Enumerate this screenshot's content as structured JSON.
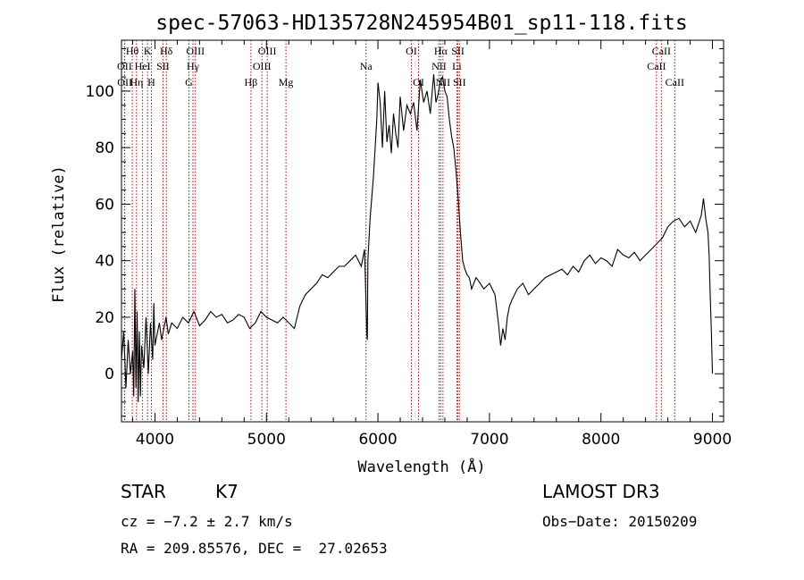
{
  "chart_data": {
    "type": "line",
    "title": "spec-57063-HD135728N245954B01_sp11-118.fits",
    "xlabel": "Wavelength (Å)",
    "ylabel": "Flux (relative)",
    "xlim": [
      3700,
      9100
    ],
    "ylim": [
      -17,
      118
    ],
    "xticks": [
      4000,
      5000,
      6000,
      7000,
      8000,
      9000
    ],
    "yticks": [
      0,
      20,
      40,
      60,
      80,
      100
    ],
    "grid": false,
    "series": [
      {
        "color": "#000000",
        "x": [
          3700,
          3720,
          3740,
          3760,
          3780,
          3800,
          3810,
          3820,
          3830,
          3840,
          3850,
          3860,
          3870,
          3880,
          3900,
          3920,
          3940,
          3960,
          3980,
          3990,
          4000,
          4020,
          4040,
          4060,
          4080,
          4100,
          4120,
          4150,
          4200,
          4250,
          4300,
          4350,
          4400,
          4450,
          4500,
          4550,
          4600,
          4650,
          4700,
          4750,
          4800,
          4850,
          4900,
          4950,
          5000,
          5050,
          5100,
          5150,
          5200,
          5250,
          5300,
          5350,
          5400,
          5450,
          5500,
          5550,
          5600,
          5650,
          5700,
          5750,
          5800,
          5850,
          5880,
          5900,
          5905,
          5910,
          5930,
          5960,
          5990,
          6000,
          6020,
          6040,
          6060,
          6080,
          6100,
          6120,
          6140,
          6160,
          6180,
          6200,
          6230,
          6260,
          6290,
          6320,
          6350,
          6380,
          6410,
          6440,
          6470,
          6500,
          6520,
          6540,
          6560,
          6580,
          6600,
          6620,
          6640,
          6660,
          6680,
          6700,
          6720,
          6740,
          6760,
          6780,
          6800,
          6820,
          6840,
          6860,
          6880,
          6900,
          6950,
          7000,
          7050,
          7080,
          7100,
          7120,
          7140,
          7160,
          7180,
          7200,
          7250,
          7300,
          7350,
          7400,
          7450,
          7500,
          7550,
          7600,
          7650,
          7700,
          7750,
          7800,
          7850,
          7900,
          7950,
          8000,
          8050,
          8100,
          8150,
          8200,
          8250,
          8300,
          8350,
          8400,
          8450,
          8500,
          8550,
          8600,
          8650,
          8700,
          8750,
          8800,
          8850,
          8900,
          8920,
          8940,
          8960,
          8970,
          8980,
          8990,
          9000
        ],
        "y": [
          5,
          15,
          -5,
          12,
          0,
          8,
          -8,
          30,
          -5,
          22,
          -10,
          15,
          -8,
          10,
          2,
          20,
          0,
          18,
          5,
          25,
          10,
          14,
          18,
          12,
          16,
          20,
          14,
          18,
          16,
          20,
          18,
          22,
          17,
          19,
          22,
          20,
          21,
          18,
          19,
          21,
          20,
          16,
          18,
          22,
          20,
          19,
          18,
          20,
          18,
          16,
          24,
          28,
          30,
          32,
          35,
          34,
          36,
          38,
          38,
          40,
          42,
          38,
          44,
          14,
          12,
          40,
          55,
          70,
          90,
          103,
          96,
          80,
          100,
          82,
          88,
          78,
          92,
          85,
          80,
          98,
          86,
          95,
          92,
          96,
          86,
          104,
          96,
          100,
          92,
          106,
          96,
          99,
          104,
          105,
          100,
          98,
          90,
          84,
          80,
          72,
          62,
          50,
          40,
          37,
          35,
          34,
          30,
          32,
          34,
          33,
          30,
          32,
          28,
          18,
          10,
          16,
          12,
          20,
          24,
          26,
          30,
          32,
          28,
          30,
          32,
          34,
          35,
          36,
          37,
          35,
          38,
          36,
          40,
          42,
          39,
          41,
          40,
          38,
          44,
          42,
          41,
          43,
          40,
          42,
          44,
          46,
          48,
          52,
          54,
          55,
          52,
          54,
          50,
          56,
          62,
          55,
          50,
          42,
          28,
          15,
          0
        ]
      }
    ],
    "lines": {
      "row1": [
        {
          "label": "Hθ",
          "x": 3797
        },
        {
          "label": "K",
          "x": 3934
        },
        {
          "label": "Hδ",
          "x": 4102
        },
        {
          "label": "OIII",
          "x": 4363
        },
        {
          "label": "OIII",
          "x": 5007
        },
        {
          "label": "OI",
          "x": 6300
        },
        {
          "label": "Hα",
          "x": 6563
        },
        {
          "label": "SII",
          "x": 6717
        },
        {
          "label": "CaII",
          "x": 8542
        }
      ],
      "row2": [
        {
          "label": "OII",
          "x": 3727
        },
        {
          "label": "HeI",
          "x": 3889
        },
        {
          "label": "SII",
          "x": 4072
        },
        {
          "label": "Hγ",
          "x": 4341
        },
        {
          "label": "OIII",
          "x": 4959
        },
        {
          "label": "Na",
          "x": 5893
        },
        {
          "label": "NII",
          "x": 6548
        },
        {
          "label": "Li",
          "x": 6708
        },
        {
          "label": "CaII",
          "x": 8498
        }
      ],
      "row3": [
        {
          "label": "OII",
          "x": 3729
        },
        {
          "label": "Hη",
          "x": 3835
        },
        {
          "label": "H",
          "x": 3968
        },
        {
          "label": "G",
          "x": 4305
        },
        {
          "label": "Hβ",
          "x": 4861
        },
        {
          "label": "Mg",
          "x": 5175
        },
        {
          "label": "OI",
          "x": 6364
        },
        {
          "label": "NII",
          "x": 6583
        },
        {
          "label": "SII",
          "x": 6731
        },
        {
          "label": "CaII",
          "x": 8662
        }
      ],
      "line_color": "#cc0000"
    }
  },
  "info": {
    "class_label": "STAR",
    "subclass": "K7",
    "survey": "LAMOST DR3",
    "cz": "cz = −7.2 ± 2.7 km/s",
    "obs_date": "Obs−Date: 20150209",
    "coords": "RA = 209.85576, DEC =  27.02653"
  }
}
